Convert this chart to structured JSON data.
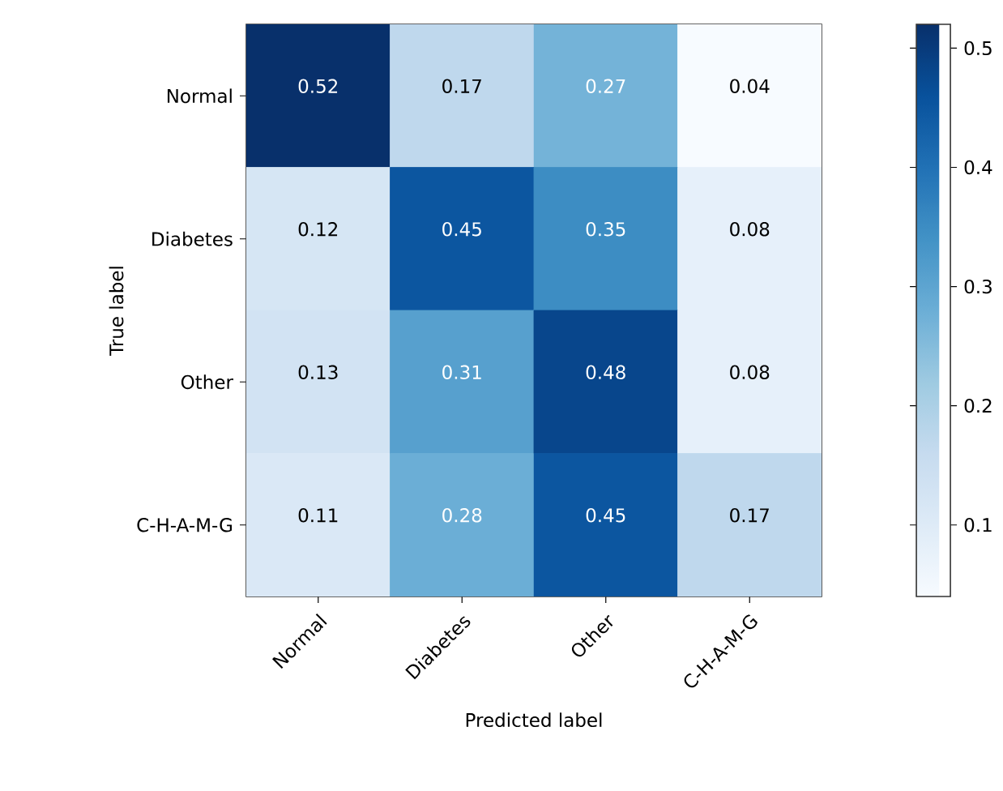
{
  "chart_data": {
    "type": "heatmap",
    "xlabel": "Predicted label",
    "ylabel": "True label",
    "categories": [
      "Normal",
      "Diabetes",
      "Other",
      "C-H-A-M-G"
    ],
    "y_categories": [
      "Normal",
      "Diabetes",
      "Other",
      "C-H-A-M-G"
    ],
    "cells": [
      [
        0.52,
        0.17,
        0.27,
        0.04
      ],
      [
        0.12,
        0.45,
        0.35,
        0.08
      ],
      [
        0.13,
        0.31,
        0.48,
        0.08
      ],
      [
        0.11,
        0.28,
        0.45,
        0.17
      ]
    ],
    "clim": [
      0.04,
      0.52
    ],
    "cticks": [
      0.1,
      0.2,
      0.3,
      0.4,
      0.5
    ],
    "data_labels": true
  }
}
